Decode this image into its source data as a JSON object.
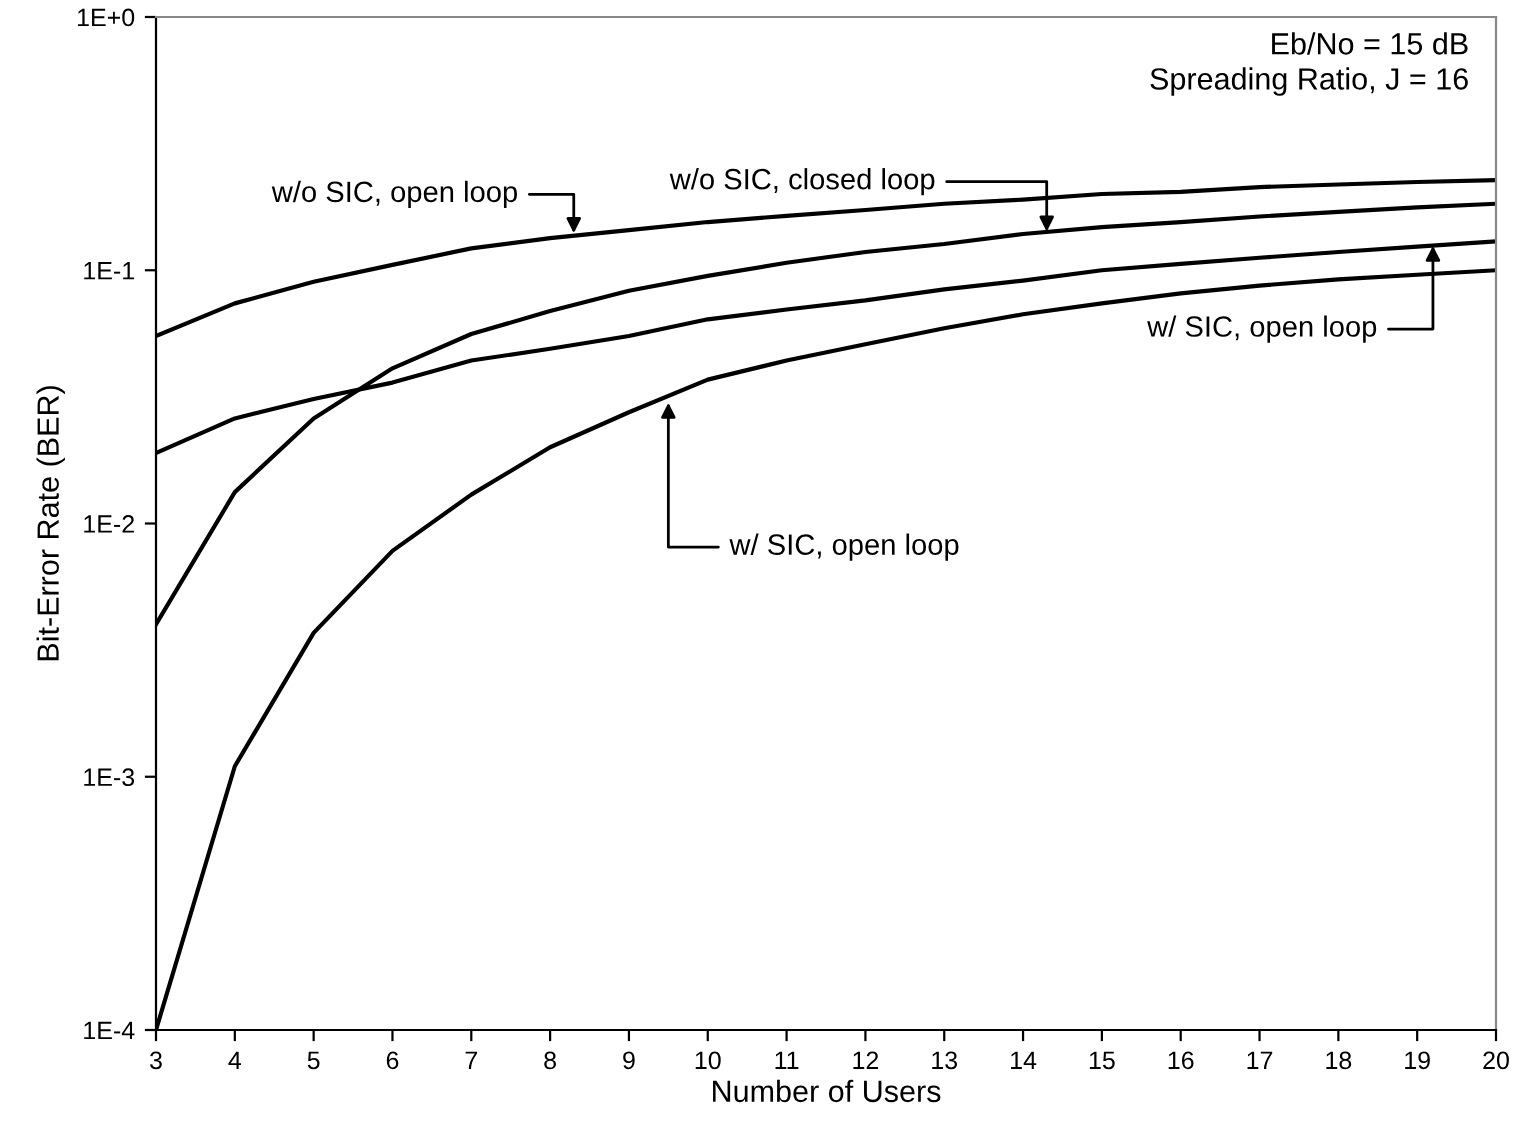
{
  "chart_data": {
    "type": "line",
    "xlabel": "Number of Users",
    "ylabel": "Bit-Error Rate (BER)",
    "log": "y",
    "x": [
      3,
      4,
      5,
      6,
      7,
      8,
      9,
      10,
      11,
      12,
      13,
      14,
      15,
      16,
      17,
      18,
      19,
      20
    ],
    "series": [
      {
        "color": "#000000",
        "values": [
          0.055,
          0.074,
          0.09,
          0.105,
          0.122,
          0.134,
          0.144,
          0.155,
          0.164,
          0.173,
          0.183,
          0.19,
          0.2,
          0.204,
          0.213,
          0.218,
          0.223,
          0.227
        ]
      },
      {
        "color": "#000000",
        "values": [
          0.004,
          0.0133,
          0.026,
          0.041,
          0.056,
          0.069,
          0.083,
          0.095,
          0.107,
          0.118,
          0.127,
          0.139,
          0.148,
          0.155,
          0.163,
          0.17,
          0.177,
          0.183
        ]
      },
      {
        "color": "#000000",
        "values": [
          0.019,
          0.026,
          0.031,
          0.036,
          0.044,
          0.049,
          0.055,
          0.064,
          0.07,
          0.076,
          0.084,
          0.091,
          0.1,
          0.106,
          0.112,
          0.118,
          0.124,
          0.13
        ]
      },
      {
        "color": "#000000",
        "values": [
          0.0001,
          0.0011,
          0.0037,
          0.0078,
          0.013,
          0.02,
          0.0275,
          0.037,
          0.044,
          0.051,
          0.059,
          0.067,
          0.074,
          0.081,
          0.087,
          0.092,
          0.096,
          0.1
        ]
      }
    ],
    "xlim": [
      3,
      20
    ],
    "xticks": [
      3,
      4,
      5,
      6,
      7,
      8,
      9,
      10,
      11,
      12,
      13,
      14,
      15,
      16,
      17,
      18,
      19,
      20
    ],
    "ylim": [
      0.0001,
      1
    ],
    "yticks": [
      {
        "value": 0.0001,
        "label": "1E-4"
      },
      {
        "value": 0.001,
        "label": "1E-3"
      },
      {
        "value": 0.01,
        "label": "1E-2"
      },
      {
        "value": 0.1,
        "label": "1E-1"
      },
      {
        "value": 1,
        "label": "1E+0"
      }
    ],
    "grid": false,
    "legend": false,
    "marker": "none",
    "line_style": "solid",
    "annotations": [
      "Eb/No = 15 dB\nSpreading Ratio, J = 16",
      {
        "text": "w/o SIC, open loop",
        "x": 8.3,
        "y": 0.14
      },
      {
        "text": "w/o SIC, closed loop",
        "x": 14.3,
        "y": 0.142
      },
      {
        "text": "w/ SIC, open loop",
        "x": 19.2,
        "y": 0.125
      },
      {
        "text": "w/ SIC, open loop",
        "x": 9.5,
        "y": 0.03
      }
    ]
  }
}
